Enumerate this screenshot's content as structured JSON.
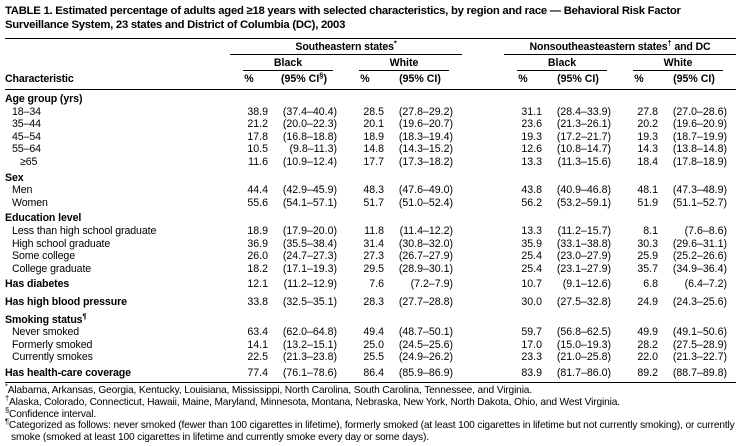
{
  "title": "TABLE 1. Estimated percentage of adults aged ≥18 years with selected characteristics, by region and race — Behavioral Risk Factor Surveillance System, 23 states and District of Columbia (DC), 2003",
  "table": {
    "characteristic_header": "Characteristic",
    "groups": [
      {
        "pre": "Southeastern states",
        "sup": "*",
        "post": ""
      },
      {
        "pre": "Nonsoutheasteastern states",
        "sup": "†",
        "post": " and DC"
      }
    ],
    "race_headers": [
      "Black",
      "White",
      "Black",
      "White"
    ],
    "stat_headers": [
      "%",
      {
        "pre": "(95% CI",
        "sup": "§",
        "post": ")"
      },
      "%",
      "(95% CI)",
      "%",
      "(95% CI)",
      "%",
      "(95% CI)"
    ],
    "sections": [
      {
        "header": "Age group (yrs)",
        "rows": [
          {
            "label": "18–34",
            "indent": 1,
            "values": [
              "38.9",
              "(37.4–40.4)",
              "28.5",
              "(27.8–29.2)",
              "31.1",
              "(28.4–33.9)",
              "27.8",
              "(27.0–28.6)"
            ]
          },
          {
            "label": "35–44",
            "indent": 1,
            "values": [
              "21.2",
              "(20.0–22.3)",
              "20.1",
              "(19.6–20.7)",
              "23.6",
              "(21.3–26.1)",
              "20.2",
              "(19.6–20.9)"
            ]
          },
          {
            "label": "45–54",
            "indent": 1,
            "values": [
              "17.8",
              "(16.8–18.8)",
              "18.9",
              "(18.3–19.4)",
              "19.3",
              "(17.2–21.7)",
              "19.3",
              "(18.7–19.9)"
            ]
          },
          {
            "label": "55–64",
            "indent": 1,
            "values": [
              "10.5",
              "(9.8–11.3)",
              "14.8",
              "(14.3–15.2)",
              "12.6",
              "(10.8–14.7)",
              "14.3",
              "(13.8–14.8)"
            ]
          },
          {
            "label": "≥65",
            "indent": 2,
            "values": [
              "11.6",
              "(10.9–12.4)",
              "17.7",
              "(17.3–18.2)",
              "13.3",
              "(11.3–15.6)",
              "18.4",
              "(17.8–18.9)"
            ]
          }
        ]
      },
      {
        "header": "Sex",
        "rows": [
          {
            "label": "Men",
            "indent": 1,
            "values": [
              "44.4",
              "(42.9–45.9)",
              "48.3",
              "(47.6–49.0)",
              "43.8",
              "(40.9–46.8)",
              "48.1",
              "(47.3–48.9)"
            ]
          },
          {
            "label": "Women",
            "indent": 1,
            "values": [
              "55.6",
              "(54.1–57.1)",
              "51.7",
              "(51.0–52.4)",
              "56.2",
              "(53.2–59.1)",
              "51.9",
              "(51.1–52.7)"
            ]
          }
        ]
      },
      {
        "header": "Education level",
        "rows": [
          {
            "label": "Less than high school graduate",
            "indent": 1,
            "values": [
              "18.9",
              "(17.9–20.0)",
              "11.8",
              "(11.4–12.2)",
              "13.3",
              "(11.2–15.7)",
              "8.1",
              "(7.6–8.6)"
            ]
          },
          {
            "label": "High school graduate",
            "indent": 1,
            "values": [
              "36.9",
              "(35.5–38.4)",
              "31.4",
              "(30.8–32.0)",
              "35.9",
              "(33.1–38.8)",
              "30.3",
              "(29.6–31.1)"
            ]
          },
          {
            "label": "Some college",
            "indent": 1,
            "values": [
              "26.0",
              "(24.7–27.3)",
              "27.3",
              "(26.7–27.9)",
              "25.4",
              "(23.0–27.9)",
              "25.9",
              "(25.2–26.6)"
            ]
          },
          {
            "label": "College graduate",
            "indent": 1,
            "values": [
              "18.2",
              "(17.1–19.3)",
              "29.5",
              "(28.9–30.1)",
              "25.4",
              "(23.1–27.9)",
              "35.7",
              "(34.9–36.4)"
            ]
          }
        ]
      },
      {
        "header": null,
        "rows": [
          {
            "label": "Has diabetes",
            "indent": 0,
            "bold": true,
            "values": [
              "12.1",
              "(11.2–12.9)",
              "7.6",
              "(7.2–7.9)",
              "10.7",
              "(9.1–12.6)",
              "6.8",
              "(6.4–7.2)"
            ]
          }
        ]
      },
      {
        "header": null,
        "rows": [
          {
            "label": "Has high blood pressure",
            "indent": 0,
            "bold": true,
            "values": [
              "33.8",
              "(32.5–35.1)",
              "28.3",
              "(27.7–28.8)",
              "30.0",
              "(27.5–32.8)",
              "24.9",
              "(24.3–25.6)"
            ]
          }
        ]
      },
      {
        "header": "Smoking status",
        "header_sup": "¶",
        "rows": [
          {
            "label": "Never smoked",
            "indent": 1,
            "values": [
              "63.4",
              "(62.0–64.8)",
              "49.4",
              "(48.7–50.1)",
              "59.7",
              "(56.8–62.5)",
              "49.9",
              "(49.1–50.6)"
            ]
          },
          {
            "label": "Formerly smoked",
            "indent": 1,
            "values": [
              "14.1",
              "(13.2–15.1)",
              "25.0",
              "(24.5–25.6)",
              "17.0",
              "(15.0–19.3)",
              "28.2",
              "(27.5–28.9)"
            ]
          },
          {
            "label": "Currently smokes",
            "indent": 1,
            "values": [
              "22.5",
              "(21.3–23.8)",
              "25.5",
              "(24.9–26.2)",
              "23.3",
              "(21.0–25.8)",
              "22.0",
              "(21.3–22.7)"
            ]
          }
        ]
      },
      {
        "header": null,
        "rows": [
          {
            "label": "Has health-care coverage",
            "indent": 0,
            "bold": true,
            "values": [
              "77.4",
              "(76.1–78.6)",
              "86.4",
              "(85.9–86.9)",
              "83.9",
              "(81.7–86.0)",
              "89.2",
              "(88.7–89.8)"
            ]
          }
        ]
      }
    ]
  },
  "footnotes": [
    {
      "marker": "*",
      "text": "Alabama, Arkansas, Georgia, Kentucky, Louisiana, Mississippi, North Carolina, South Carolina, Tennessee, and Virginia."
    },
    {
      "marker": "†",
      "text": "Alaska, Colorado, Connecticut, Hawaii, Maine, Maryland, Minnesota, Montana, Nebraska, New York, North Dakota, Ohio, and West Virginia."
    },
    {
      "marker": "§",
      "text": "Confidence interval."
    },
    {
      "marker": "¶",
      "text": "Categorized as follows: never smoked (fewer than 100 cigarettes in lifetime), formerly smoked (at least 100 cigarettes in lifetime but not currently smoking), or currently smoke (smoked at least 100 cigarettes in lifetime and currently smoke every day or some days)."
    }
  ]
}
